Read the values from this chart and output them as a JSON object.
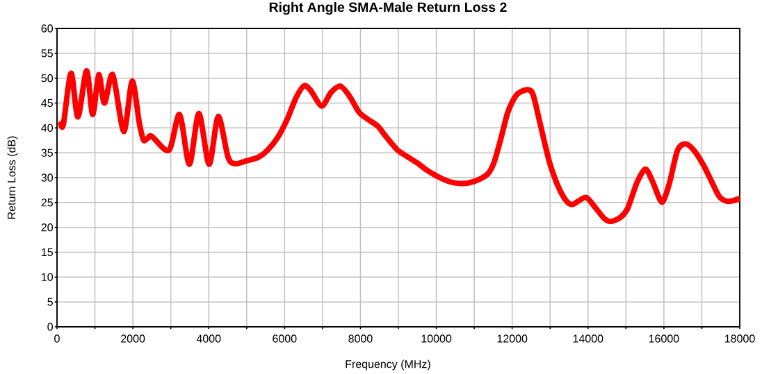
{
  "chart_data": {
    "type": "line",
    "title": "Right Angle SMA-Male Return Loss 2",
    "xlabel": "Frequency (MHz)",
    "ylabel": "Return Loss (dB)",
    "x": [
      100,
      170,
      370,
      550,
      780,
      940,
      1100,
      1250,
      1470,
      1760,
      1980,
      2170,
      2280,
      2390,
      2500,
      2950,
      3230,
      3490,
      3740,
      4010,
      4250,
      4510,
      4700,
      5000,
      5310,
      5550,
      5820,
      6060,
      6310,
      6520,
      6700,
      6980,
      7220,
      7470,
      7710,
      7960,
      8200,
      8450,
      8690,
      8970,
      9240,
      9490,
      9730,
      10040,
      10340,
      10680,
      11020,
      11350,
      11510,
      11690,
      11870,
      12000,
      12150,
      12400,
      12550,
      12730,
      12980,
      13220,
      13430,
      13590,
      13770,
      13960,
      14200,
      14440,
      14620,
      14870,
      15050,
      15290,
      15510,
      15690,
      15900,
      15990,
      16150,
      16360,
      16570,
      16790,
      17030,
      17240,
      17460,
      17640,
      17790,
      18000
    ],
    "series": [
      {
        "color": "#ff0000",
        "values": [
          40.8,
          40.8,
          51.0,
          42.2,
          51.5,
          42.7,
          50.7,
          45.0,
          50.7,
          39.3,
          49.4,
          41.0,
          37.6,
          37.9,
          38.3,
          35.5,
          42.7,
          32.7,
          42.9,
          32.7,
          42.3,
          34.1,
          32.8,
          33.4,
          34.1,
          35.5,
          38.1,
          41.6,
          46.2,
          48.5,
          47.4,
          44.4,
          47.1,
          48.4,
          46.4,
          43.2,
          41.7,
          40.4,
          38.1,
          35.6,
          34.2,
          33.0,
          31.6,
          30.2,
          29.2,
          28.8,
          29.3,
          30.7,
          32.8,
          37.5,
          42.8,
          45.2,
          46.9,
          47.7,
          46.7,
          41.1,
          33.2,
          28.1,
          25.3,
          24.6,
          25.4,
          26.0,
          23.9,
          21.7,
          21.2,
          22.1,
          23.9,
          29.0,
          31.7,
          29.4,
          25.5,
          25.4,
          29.0,
          35.5,
          36.8,
          35.5,
          32.7,
          29.5,
          26.2,
          25.3,
          25.3,
          25.8
        ]
      }
    ],
    "xlim": [
      0,
      18000
    ],
    "ylim": [
      0,
      60
    ],
    "xticks": [
      0,
      {
        "value": 1000,
        "label": null
      },
      2000,
      {
        "value": 3000,
        "label": null
      },
      4000,
      {
        "value": 5000,
        "label": null
      },
      6000,
      {
        "value": 7000,
        "label": null
      },
      8000,
      {
        "value": 9000,
        "label": null
      },
      10000,
      {
        "value": 11000,
        "label": null
      },
      12000,
      {
        "value": 13000,
        "label": null
      },
      14000,
      {
        "value": 15000,
        "label": null
      },
      16000,
      {
        "value": 17000,
        "label": null
      },
      18000
    ],
    "yticks": [
      0,
      5,
      10,
      15,
      20,
      25,
      30,
      35,
      40,
      45,
      50,
      55,
      60
    ],
    "grid": true,
    "line_style": "solid"
  }
}
